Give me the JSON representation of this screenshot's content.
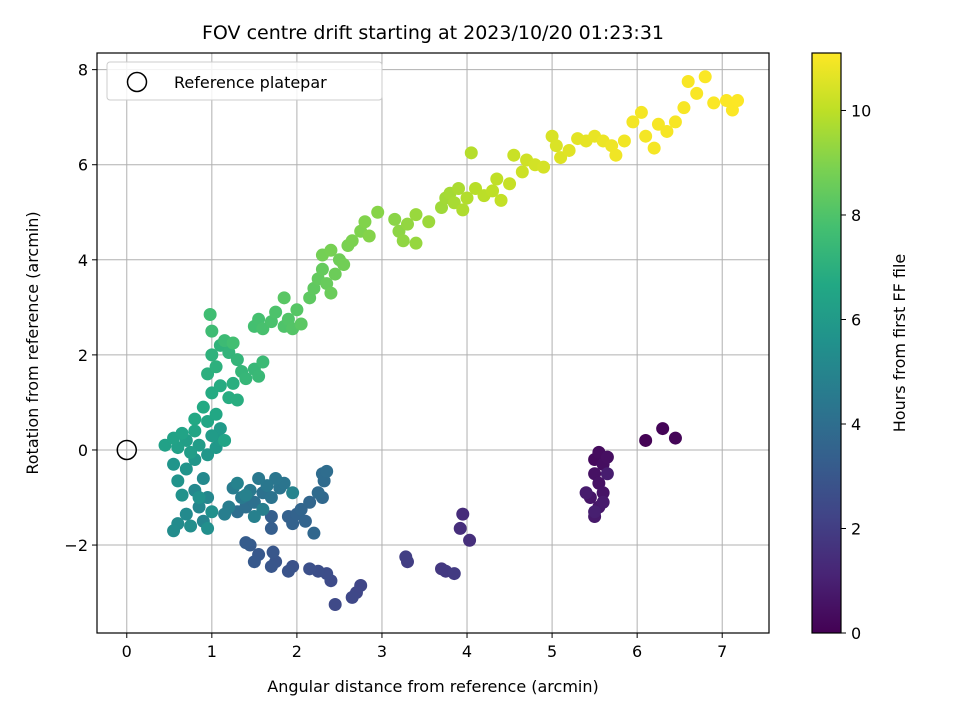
{
  "chart_data": {
    "type": "scatter",
    "title": "FOV centre drift starting at 2023/10/20 01:23:31",
    "xlabel": "Angular distance from reference (arcmin)",
    "ylabel": "Rotation from reference (arcmin)",
    "xlim": [
      -0.35,
      7.55
    ],
    "ylim": [
      -3.85,
      8.35
    ],
    "xticks": [
      0,
      1,
      2,
      3,
      4,
      5,
      6,
      7
    ],
    "yticks": [
      -2,
      0,
      2,
      4,
      6,
      8
    ],
    "xtick_labels": [
      "0",
      "1",
      "2",
      "3",
      "4",
      "5",
      "6",
      "7"
    ],
    "ytick_labels": [
      "−2",
      "0",
      "2",
      "4",
      "6",
      "8"
    ],
    "grid": true,
    "legend": {
      "placement": "upper-left",
      "entries": [
        "Reference platepar"
      ]
    },
    "reference_point": {
      "x": 0,
      "y": 0,
      "marker": "open-circle"
    },
    "colorbar": {
      "label": "Hours from first FF file",
      "range": [
        0,
        11.1
      ],
      "ticks": [
        0,
        2,
        4,
        6,
        8,
        10
      ],
      "tick_labels": [
        "0",
        "2",
        "4",
        "6",
        "8",
        "10"
      ],
      "colormap": "viridis"
    },
    "points": [
      [
        6.1,
        0.2,
        0.05
      ],
      [
        6.3,
        0.45,
        0.1
      ],
      [
        6.45,
        0.25,
        0.15
      ],
      [
        5.5,
        -0.2,
        0.3
      ],
      [
        5.55,
        -0.05,
        0.35
      ],
      [
        5.6,
        -0.3,
        0.4
      ],
      [
        5.65,
        -0.15,
        0.45
      ],
      [
        5.5,
        -0.5,
        0.5
      ],
      [
        5.55,
        -0.7,
        0.55
      ],
      [
        5.6,
        -0.9,
        0.6
      ],
      [
        5.45,
        -1.0,
        0.65
      ],
      [
        5.55,
        -1.2,
        0.7
      ],
      [
        5.5,
        -1.4,
        0.75
      ],
      [
        5.6,
        -1.1,
        0.8
      ],
      [
        5.4,
        -0.9,
        0.85
      ],
      [
        5.65,
        -0.5,
        0.9
      ],
      [
        5.5,
        -1.3,
        0.95
      ],
      [
        3.95,
        -1.35,
        1.4
      ],
      [
        3.92,
        -1.65,
        1.45
      ],
      [
        4.03,
        -1.9,
        1.5
      ],
      [
        3.7,
        -2.5,
        1.8
      ],
      [
        3.75,
        -2.55,
        1.85
      ],
      [
        3.85,
        -2.6,
        1.9
      ],
      [
        3.3,
        -2.35,
        2.0
      ],
      [
        3.28,
        -2.25,
        2.05
      ],
      [
        2.75,
        -2.85,
        2.3
      ],
      [
        2.7,
        -3.0,
        2.35
      ],
      [
        2.65,
        -3.1,
        2.4
      ],
      [
        2.45,
        -3.25,
        2.45
      ],
      [
        2.4,
        -2.75,
        2.5
      ],
      [
        2.35,
        -2.6,
        2.6
      ],
      [
        2.25,
        -2.55,
        2.65
      ],
      [
        2.15,
        -2.5,
        2.7
      ],
      [
        1.95,
        -2.45,
        2.8
      ],
      [
        1.9,
        -2.55,
        2.85
      ],
      [
        1.75,
        -2.35,
        2.9
      ],
      [
        1.7,
        -2.45,
        2.95
      ],
      [
        1.72,
        -2.15,
        3.0
      ],
      [
        1.55,
        -2.2,
        3.05
      ],
      [
        1.5,
        -2.35,
        3.1
      ],
      [
        1.45,
        -2.0,
        3.15
      ],
      [
        1.4,
        -1.95,
        3.2
      ],
      [
        1.7,
        -1.65,
        3.3
      ],
      [
        1.7,
        -1.4,
        3.35
      ],
      [
        1.9,
        -1.4,
        3.4
      ],
      [
        1.95,
        -1.55,
        3.45
      ],
      [
        2.0,
        -1.35,
        3.5
      ],
      [
        2.1,
        -1.5,
        3.55
      ],
      [
        2.05,
        -1.25,
        3.6
      ],
      [
        2.15,
        -1.1,
        3.65
      ],
      [
        2.2,
        -1.75,
        3.7
      ],
      [
        2.3,
        -1.0,
        3.75
      ],
      [
        2.25,
        -0.9,
        3.8
      ],
      [
        2.32,
        -0.65,
        3.85
      ],
      [
        2.3,
        -0.5,
        3.9
      ],
      [
        2.35,
        -0.45,
        3.95
      ],
      [
        1.3,
        -1.3,
        4.0
      ],
      [
        1.4,
        -1.2,
        4.05
      ],
      [
        1.5,
        -1.1,
        4.1
      ],
      [
        1.6,
        -0.9,
        4.15
      ],
      [
        1.7,
        -1.0,
        4.2
      ],
      [
        1.8,
        -0.8,
        4.25
      ],
      [
        1.85,
        -0.7,
        4.3
      ],
      [
        1.75,
        -0.6,
        4.35
      ],
      [
        1.65,
        -0.75,
        4.4
      ],
      [
        1.55,
        -0.6,
        4.45
      ],
      [
        1.45,
        -0.85,
        4.5
      ],
      [
        1.35,
        -1.0,
        4.55
      ],
      [
        1.25,
        -0.8,
        4.6
      ],
      [
        1.2,
        -1.2,
        4.65
      ],
      [
        1.15,
        -1.35,
        4.7
      ],
      [
        1.6,
        -1.25,
        4.75
      ],
      [
        1.5,
        -1.4,
        4.8
      ],
      [
        1.4,
        -0.95,
        4.85
      ],
      [
        1.3,
        -0.7,
        4.9
      ],
      [
        1.95,
        -0.9,
        4.95
      ],
      [
        0.9,
        -1.5,
        5.0
      ],
      [
        0.85,
        -1.2,
        5.05
      ],
      [
        0.95,
        -1.0,
        5.1
      ],
      [
        0.8,
        -0.85,
        5.15
      ],
      [
        0.9,
        -0.6,
        5.2
      ],
      [
        0.7,
        -1.35,
        5.25
      ],
      [
        0.6,
        -1.55,
        5.3
      ],
      [
        0.55,
        -1.7,
        5.35
      ],
      [
        0.75,
        -1.6,
        5.4
      ],
      [
        0.95,
        -1.65,
        5.45
      ],
      [
        1.0,
        -1.3,
        5.5
      ],
      [
        0.85,
        -1.0,
        5.55
      ],
      [
        0.65,
        -0.95,
        5.6
      ],
      [
        0.6,
        -0.65,
        5.65
      ],
      [
        0.7,
        -0.4,
        5.7
      ],
      [
        0.55,
        -0.3,
        5.75
      ],
      [
        0.8,
        -0.2,
        5.8
      ],
      [
        0.95,
        -0.1,
        5.85
      ],
      [
        1.05,
        0.05,
        5.9
      ],
      [
        1.1,
        0.2,
        5.95
      ],
      [
        1.1,
        0.45,
        6.0
      ],
      [
        1.0,
        0.3,
        6.05
      ],
      [
        0.85,
        0.1,
        6.1
      ],
      [
        0.75,
        -0.05,
        6.15
      ],
      [
        0.7,
        0.2,
        6.2
      ],
      [
        0.6,
        0.05,
        6.25
      ],
      [
        0.45,
        0.1,
        6.3
      ],
      [
        0.55,
        0.25,
        6.35
      ],
      [
        0.65,
        0.35,
        6.4
      ],
      [
        1.15,
        0.2,
        6.45
      ],
      [
        0.8,
        0.4,
        6.5
      ],
      [
        0.95,
        0.6,
        6.55
      ],
      [
        1.05,
        0.75,
        6.6
      ],
      [
        0.8,
        0.65,
        6.65
      ],
      [
        0.9,
        0.9,
        6.7
      ],
      [
        1.0,
        1.2,
        6.75
      ],
      [
        1.1,
        1.35,
        6.8
      ],
      [
        1.2,
        1.1,
        6.85
      ],
      [
        1.3,
        1.05,
        6.9
      ],
      [
        1.25,
        1.4,
        6.95
      ],
      [
        0.95,
        1.6,
        7.0
      ],
      [
        1.05,
        1.75,
        7.05
      ],
      [
        1.0,
        2.0,
        7.1
      ],
      [
        1.1,
        2.2,
        7.15
      ],
      [
        1.2,
        2.05,
        7.2
      ],
      [
        1.3,
        1.9,
        7.25
      ],
      [
        1.35,
        1.65,
        7.3
      ],
      [
        1.4,
        1.5,
        7.35
      ],
      [
        1.5,
        1.7,
        7.4
      ],
      [
        1.55,
        1.55,
        7.45
      ],
      [
        1.6,
        1.85,
        7.5
      ],
      [
        1.15,
        2.3,
        7.55
      ],
      [
        1.0,
        2.5,
        7.6
      ],
      [
        0.98,
        2.85,
        7.65
      ],
      [
        1.25,
        2.25,
        7.7
      ],
      [
        1.5,
        2.6,
        7.75
      ],
      [
        1.55,
        2.75,
        7.8
      ],
      [
        1.6,
        2.55,
        7.85
      ],
      [
        1.7,
        2.7,
        7.9
      ],
      [
        1.75,
        2.9,
        7.95
      ],
      [
        1.85,
        2.6,
        8.0
      ],
      [
        1.9,
        2.75,
        8.05
      ],
      [
        1.95,
        2.55,
        8.1
      ],
      [
        2.0,
        2.95,
        8.15
      ],
      [
        1.85,
        3.2,
        8.2
      ],
      [
        2.05,
        2.65,
        8.25
      ],
      [
        2.15,
        3.2,
        8.3
      ],
      [
        2.2,
        3.4,
        8.35
      ],
      [
        2.25,
        3.6,
        8.4
      ],
      [
        2.3,
        3.8,
        8.45
      ],
      [
        2.35,
        3.5,
        8.5
      ],
      [
        2.4,
        3.3,
        8.55
      ],
      [
        2.45,
        3.7,
        8.6
      ],
      [
        2.5,
        4.0,
        8.65
      ],
      [
        2.55,
        3.9,
        8.7
      ],
      [
        2.3,
        4.1,
        8.75
      ],
      [
        2.4,
        4.2,
        8.8
      ],
      [
        2.6,
        4.3,
        8.85
      ],
      [
        2.65,
        4.4,
        8.9
      ],
      [
        2.75,
        4.6,
        8.95
      ],
      [
        2.8,
        4.8,
        9.0
      ],
      [
        2.85,
        4.5,
        9.05
      ],
      [
        2.95,
        5.0,
        9.1
      ],
      [
        3.15,
        4.85,
        9.15
      ],
      [
        3.2,
        4.6,
        9.2
      ],
      [
        3.25,
        4.4,
        9.25
      ],
      [
        3.3,
        4.75,
        9.3
      ],
      [
        3.4,
        4.35,
        9.35
      ],
      [
        3.4,
        4.95,
        9.4
      ],
      [
        3.55,
        4.8,
        9.45
      ],
      [
        3.7,
        5.1,
        9.5
      ],
      [
        3.75,
        5.3,
        9.55
      ],
      [
        3.8,
        5.4,
        9.6
      ],
      [
        3.85,
        5.2,
        9.65
      ],
      [
        3.9,
        5.5,
        9.7
      ],
      [
        3.95,
        5.05,
        9.75
      ],
      [
        4.0,
        5.3,
        9.8
      ],
      [
        4.05,
        6.25,
        9.85
      ],
      [
        4.1,
        5.5,
        9.9
      ],
      [
        4.2,
        5.35,
        9.95
      ],
      [
        4.3,
        5.45,
        10.0
      ],
      [
        4.35,
        5.7,
        10.05
      ],
      [
        4.4,
        5.25,
        10.1
      ],
      [
        4.5,
        5.6,
        10.15
      ],
      [
        4.55,
        6.2,
        10.2
      ],
      [
        4.65,
        5.85,
        10.25
      ],
      [
        4.7,
        6.1,
        10.3
      ],
      [
        4.8,
        6.0,
        10.35
      ],
      [
        4.9,
        5.95,
        10.4
      ],
      [
        5.0,
        6.6,
        10.45
      ],
      [
        5.05,
        6.4,
        10.5
      ],
      [
        5.1,
        6.15,
        10.55
      ],
      [
        5.2,
        6.3,
        10.6
      ],
      [
        5.3,
        6.55,
        10.65
      ],
      [
        5.4,
        6.5,
        10.7
      ],
      [
        5.5,
        6.6,
        10.75
      ],
      [
        5.6,
        6.5,
        10.8
      ],
      [
        5.7,
        6.4,
        10.85
      ],
      [
        5.75,
        6.2,
        10.88
      ],
      [
        5.85,
        6.5,
        10.9
      ],
      [
        5.95,
        6.9,
        10.92
      ],
      [
        6.05,
        7.1,
        10.94
      ],
      [
        6.1,
        6.6,
        10.95
      ],
      [
        6.2,
        6.35,
        10.96
      ],
      [
        6.25,
        6.85,
        10.97
      ],
      [
        6.35,
        6.7,
        10.98
      ],
      [
        6.45,
        6.9,
        10.99
      ],
      [
        6.55,
        7.2,
        11.0
      ],
      [
        6.6,
        7.75,
        11.02
      ],
      [
        6.7,
        7.5,
        11.03
      ],
      [
        6.8,
        7.85,
        11.04
      ],
      [
        6.9,
        7.3,
        11.05
      ],
      [
        7.05,
        7.35,
        11.06
      ],
      [
        7.12,
        7.15,
        11.07
      ],
      [
        7.18,
        7.35,
        11.08
      ]
    ]
  }
}
